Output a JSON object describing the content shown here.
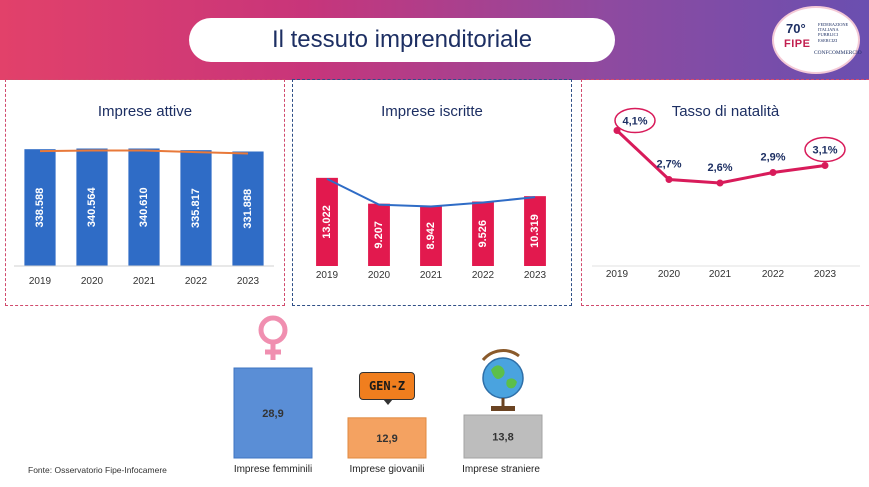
{
  "header": {
    "title": "Il tessuto imprenditoriale",
    "logo_70": "70°",
    "logo_name": "FIPE",
    "logo_org_lines": [
      "FEDERAZIONE",
      "ITALIANA",
      "PUBBLICI",
      "ESERCIZI"
    ],
    "logo_confcommercio": "CONFCOMMERCIO"
  },
  "source": "Fonte: Osservatorio Fipe-Infocamere",
  "colors": {
    "bar_blue": "#2f6cc6",
    "bar_red": "#e2194e",
    "trend_orange": "#e8793a",
    "trend_blue": "#2f6cc6",
    "line_magenta": "#d81b5a",
    "title_navy": "#1d2f63",
    "female_blue": "#5a8ed6",
    "youth_orange": "#f4a261",
    "foreign_gray": "#bdbdbd"
  },
  "chart_data": [
    {
      "type": "bar",
      "title": "Imprese attive",
      "categories": [
        "2019",
        "2020",
        "2021",
        "2022",
        "2023"
      ],
      "values": [
        338588,
        340564,
        340610,
        335817,
        331888
      ],
      "labels": [
        "338.588",
        "340.564",
        "340.610",
        "335.817",
        "331.888"
      ],
      "trendline": true
    },
    {
      "type": "bar",
      "title": "Imprese iscritte",
      "categories": [
        "2019",
        "2020",
        "2021",
        "2022",
        "2023"
      ],
      "values": [
        13022,
        9207,
        8942,
        9526,
        10319
      ],
      "labels": [
        "13.022",
        "9.207",
        "8.942",
        "9.526",
        "10.319"
      ],
      "trendline": true
    },
    {
      "type": "line",
      "title": "Tasso di natalità",
      "categories": [
        "2019",
        "2020",
        "2021",
        "2022",
        "2023"
      ],
      "values": [
        4.1,
        2.7,
        2.6,
        2.9,
        3.1
      ],
      "labels": [
        "4,1%",
        "2,7%",
        "2,6%",
        "2,9%",
        "3,1%"
      ],
      "highlighted": [
        "4,1%",
        "3,1%"
      ]
    },
    {
      "type": "bar",
      "categories": [
        "Imprese femminili",
        "Imprese giovanili",
        "Imprese straniere"
      ],
      "values": [
        28.9,
        12.9,
        13.8
      ],
      "labels": [
        "28,9",
        "12,9",
        "13,8"
      ],
      "icons": [
        "female-symbol-icon",
        "gen-z-badge-icon",
        "globe-icon"
      ],
      "badge_text": "GEN-Z"
    }
  ]
}
